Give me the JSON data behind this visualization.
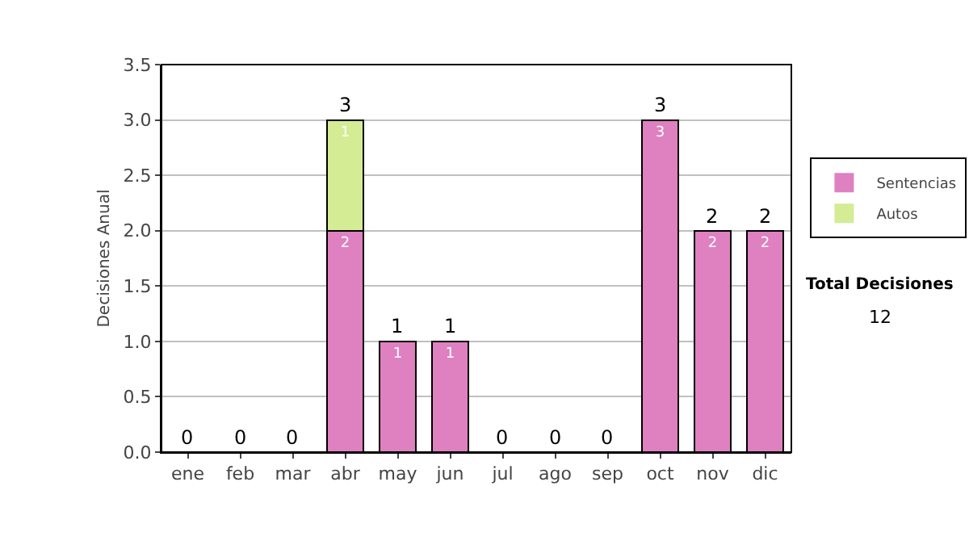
{
  "chart_data": {
    "type": "bar",
    "stacked": true,
    "ylabel": "Decisiones Anual",
    "categories": [
      "ene",
      "feb",
      "mar",
      "abr",
      "may",
      "jun",
      "jul",
      "ago",
      "sep",
      "oct",
      "nov",
      "dic"
    ],
    "series": [
      {
        "name": "Sentencias",
        "color": "#df80c0",
        "values": [
          0,
          0,
          0,
          2,
          1,
          1,
          0,
          0,
          0,
          3,
          2,
          2
        ],
        "value_labels": [
          null,
          null,
          null,
          "2",
          "1",
          "1",
          null,
          null,
          null,
          "3",
          "2",
          "2"
        ]
      },
      {
        "name": "Autos",
        "color": "#d4ec94",
        "values": [
          0,
          0,
          0,
          1,
          0,
          0,
          0,
          0,
          0,
          0,
          0,
          0
        ],
        "value_labels": [
          null,
          null,
          null,
          "1",
          null,
          null,
          null,
          null,
          null,
          null,
          null,
          null
        ]
      }
    ],
    "totals": [
      "0",
      "0",
      "0",
      "3",
      "1",
      "1",
      "0",
      "0",
      "0",
      "3",
      "2",
      "2"
    ],
    "ylim": [
      0,
      3.5
    ],
    "yticks": [
      {
        "value": 0,
        "label": "0.0"
      },
      {
        "value": 0.5,
        "label": "0.5"
      },
      {
        "value": 1,
        "label": "1.0"
      },
      {
        "value": 1.5,
        "label": "1.5"
      },
      {
        "value": 2,
        "label": "2.0"
      },
      {
        "value": 2.5,
        "label": "2.5"
      },
      {
        "value": 3,
        "label": "3.0"
      },
      {
        "value": 3.5,
        "label": "3.5"
      }
    ],
    "grid": "y",
    "legend": "right",
    "annotations": [
      "Total Decisiones",
      "12"
    ]
  }
}
